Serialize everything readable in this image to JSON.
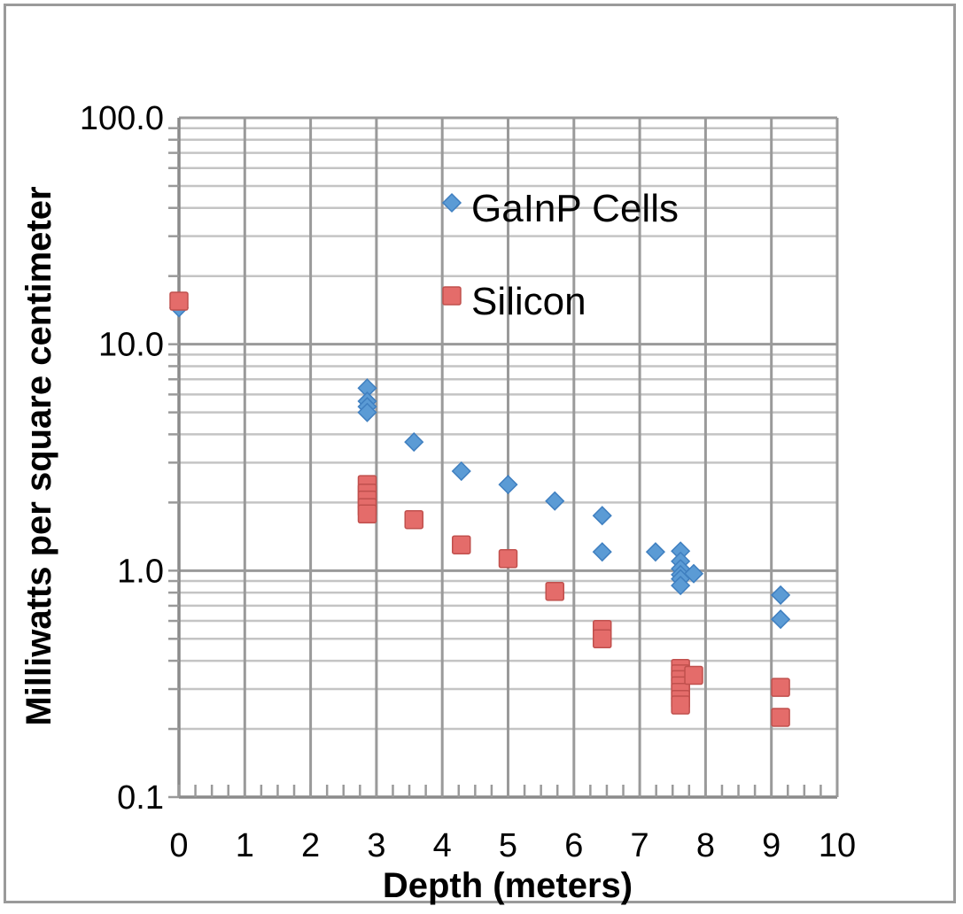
{
  "chart_data": {
    "type": "scatter",
    "title": "",
    "xlabel": "Depth (meters)",
    "ylabel": "Milliwatts per square centimeter",
    "xlim": [
      0,
      10
    ],
    "ylim": [
      0.1,
      100
    ],
    "yscale": "log",
    "grid": true,
    "legend_position": "top-center",
    "x_ticks": [
      "0",
      "1",
      "2",
      "3",
      "4",
      "5",
      "6",
      "7",
      "8",
      "9",
      "10"
    ],
    "y_ticks": [
      "0.1",
      "1.0",
      "10.0",
      "100.0"
    ],
    "series": [
      {
        "name": "GaInP Cells",
        "marker": "diamond",
        "color": "#5b9bd5",
        "points": [
          {
            "x": 0,
            "y": 14.5
          },
          {
            "x": 2.86,
            "y": 6.4
          },
          {
            "x": 2.86,
            "y": 5.6
          },
          {
            "x": 2.86,
            "y": 5.3
          },
          {
            "x": 2.86,
            "y": 5.0
          },
          {
            "x": 3.57,
            "y": 3.7
          },
          {
            "x": 4.29,
            "y": 2.75
          },
          {
            "x": 5.0,
            "y": 2.4
          },
          {
            "x": 5.71,
            "y": 2.03
          },
          {
            "x": 6.43,
            "y": 1.75
          },
          {
            "x": 6.43,
            "y": 1.21
          },
          {
            "x": 7.24,
            "y": 1.21
          },
          {
            "x": 7.62,
            "y": 1.22
          },
          {
            "x": 7.62,
            "y": 1.1
          },
          {
            "x": 7.62,
            "y": 1.02
          },
          {
            "x": 7.62,
            "y": 0.96
          },
          {
            "x": 7.62,
            "y": 0.92
          },
          {
            "x": 7.62,
            "y": 0.86
          },
          {
            "x": 7.82,
            "y": 0.97
          },
          {
            "x": 9.14,
            "y": 0.78
          },
          {
            "x": 9.14,
            "y": 0.61
          }
        ]
      },
      {
        "name": "Silicon",
        "marker": "square",
        "color": "#e46c6a",
        "points": [
          {
            "x": 0,
            "y": 15.5
          },
          {
            "x": 2.86,
            "y": 2.4
          },
          {
            "x": 2.86,
            "y": 2.2
          },
          {
            "x": 2.86,
            "y": 2.05
          },
          {
            "x": 2.86,
            "y": 1.9
          },
          {
            "x": 2.86,
            "y": 1.78
          },
          {
            "x": 3.57,
            "y": 1.68
          },
          {
            "x": 4.29,
            "y": 1.3
          },
          {
            "x": 5.0,
            "y": 1.13
          },
          {
            "x": 5.71,
            "y": 0.81
          },
          {
            "x": 6.43,
            "y": 0.55
          },
          {
            "x": 6.43,
            "y": 0.5
          },
          {
            "x": 7.62,
            "y": 0.37
          },
          {
            "x": 7.62,
            "y": 0.35
          },
          {
            "x": 7.62,
            "y": 0.33
          },
          {
            "x": 7.62,
            "y": 0.31
          },
          {
            "x": 7.62,
            "y": 0.29
          },
          {
            "x": 7.62,
            "y": 0.27
          },
          {
            "x": 7.62,
            "y": 0.255
          },
          {
            "x": 7.82,
            "y": 0.345
          },
          {
            "x": 9.14,
            "y": 0.305
          },
          {
            "x": 9.14,
            "y": 0.225
          }
        ]
      }
    ]
  }
}
